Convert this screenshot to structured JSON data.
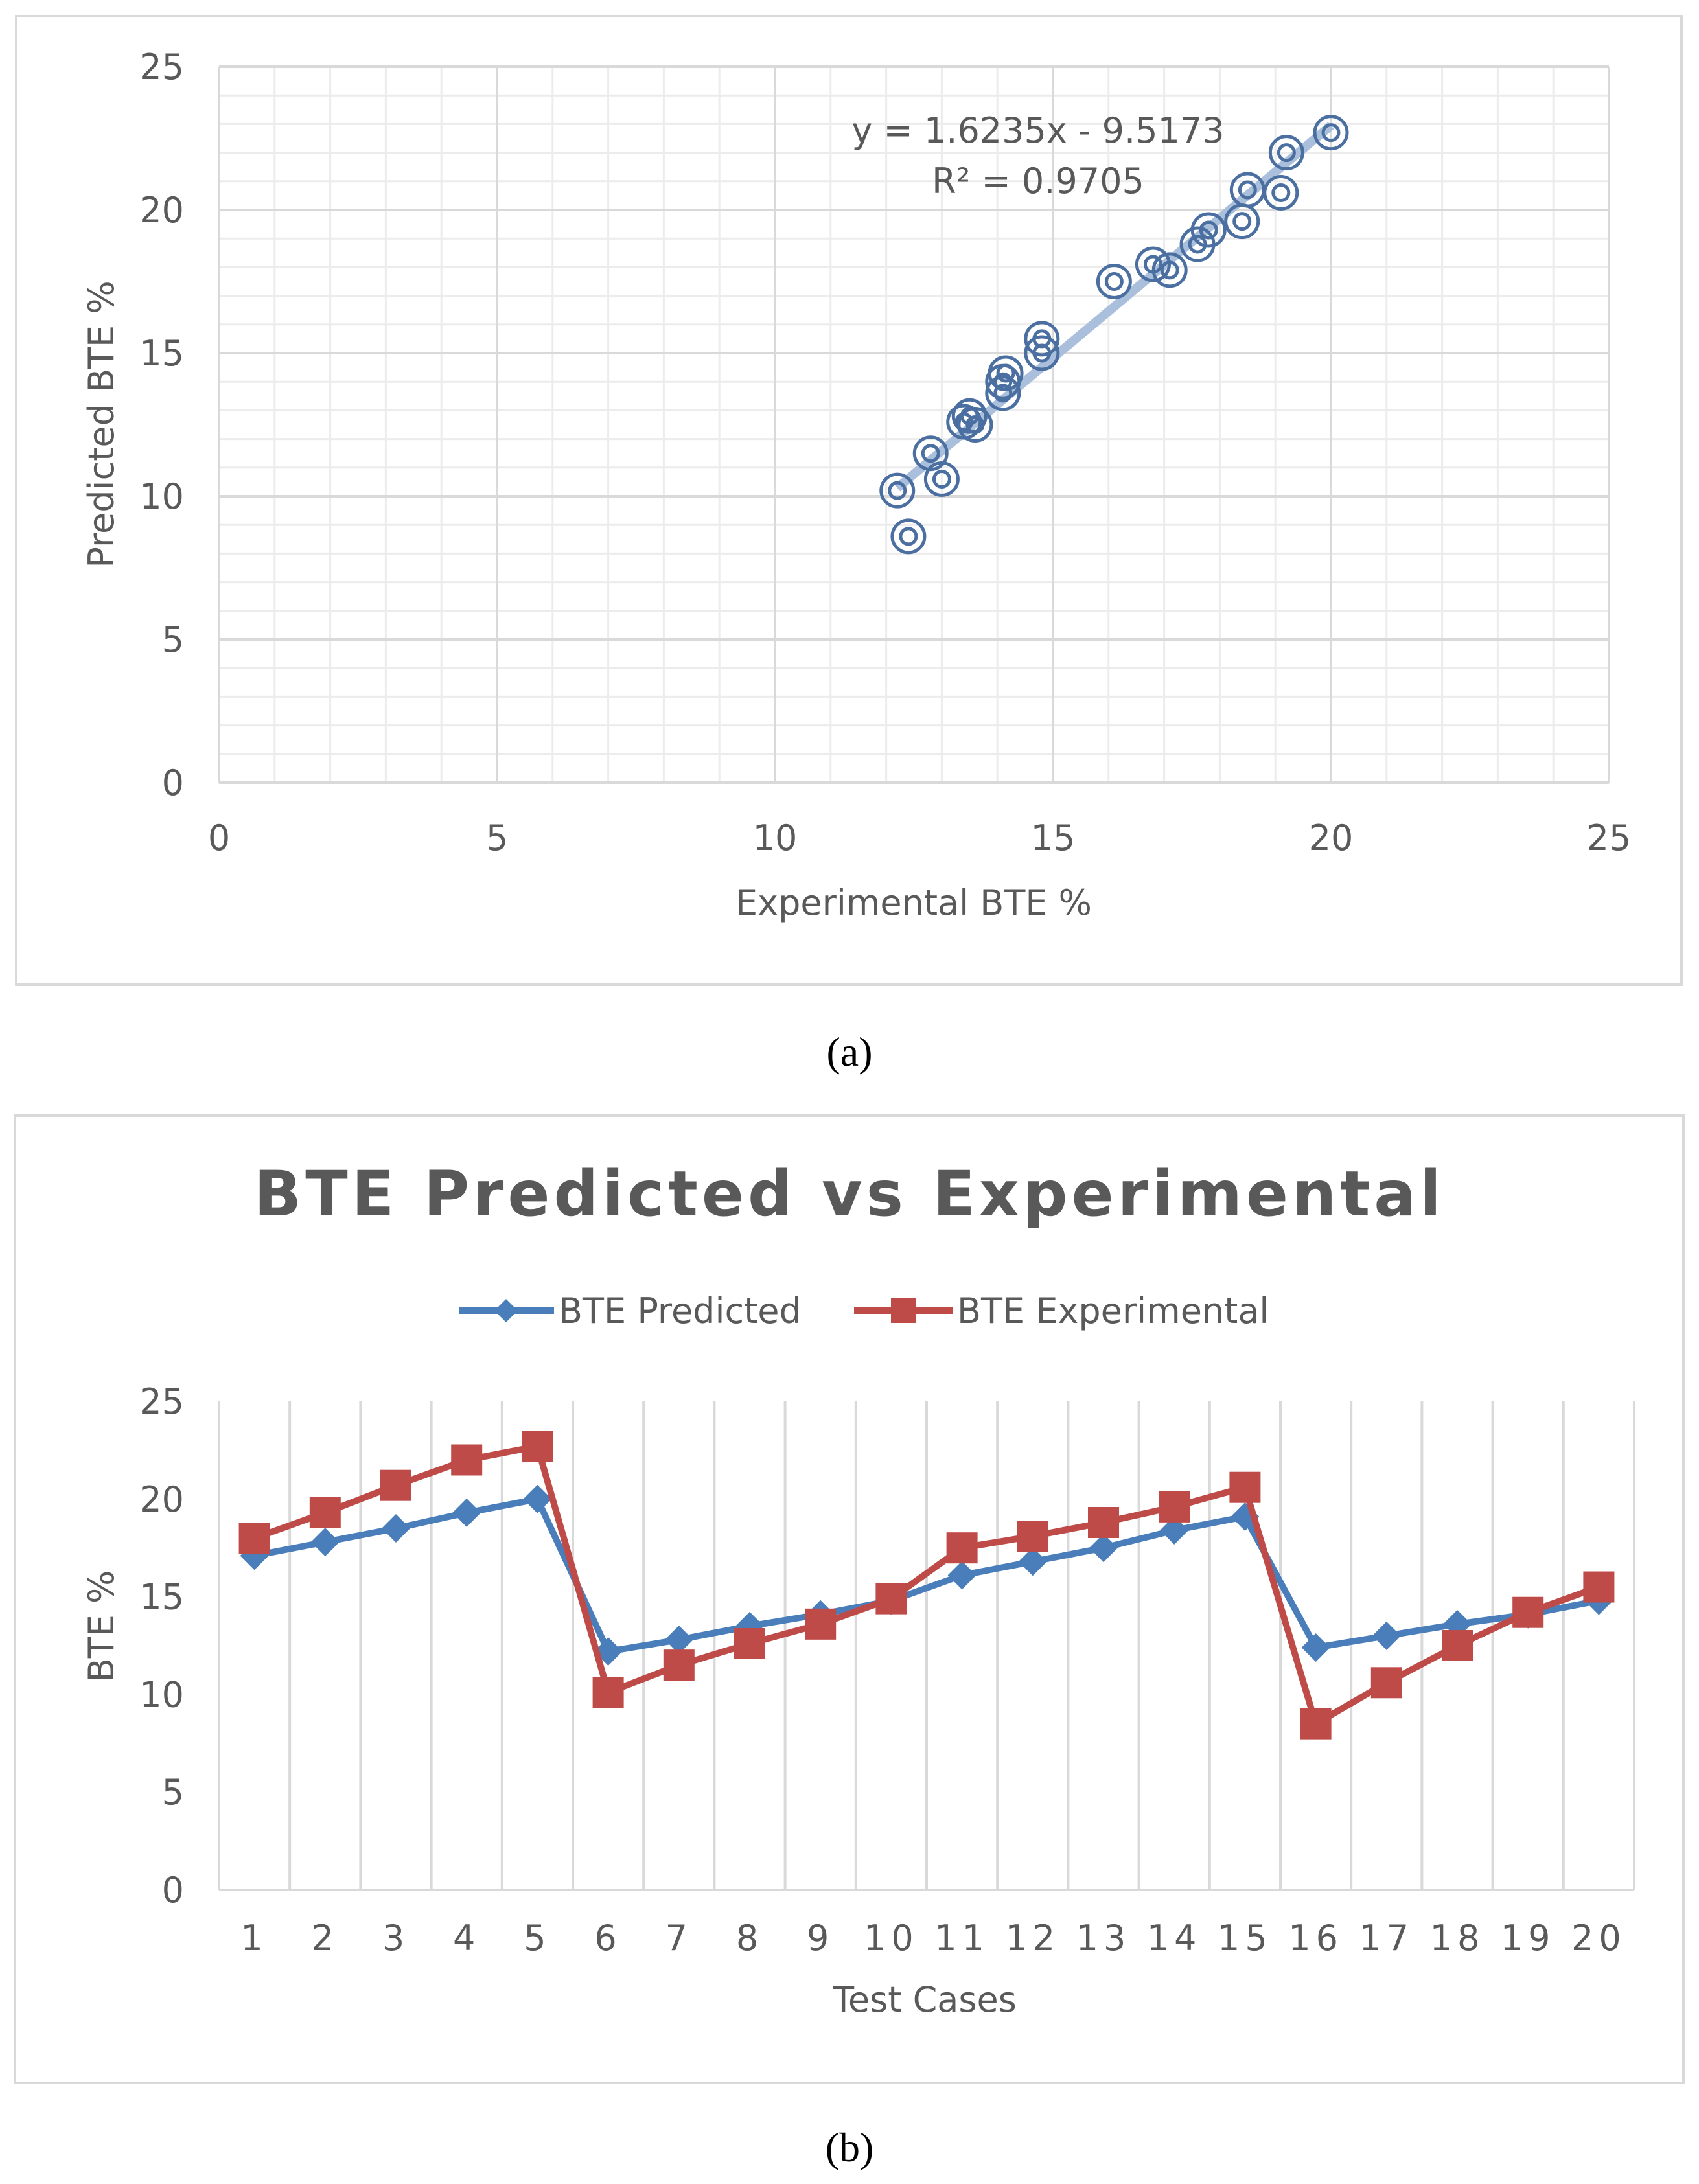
{
  "chart_data": [
    {
      "type": "scatter",
      "title": "",
      "xlabel": "Experimental BTE %",
      "ylabel": "Predicted BTE %",
      "xlim": [
        0,
        25
      ],
      "ylim": [
        0,
        25
      ],
      "xticks": [
        "0",
        "5",
        "10",
        "15",
        "20",
        "25"
      ],
      "yticks": [
        "0",
        "5",
        "10",
        "15",
        "20",
        "25"
      ],
      "marker": "double-circle",
      "color": "#4a6fa0",
      "points": [
        [
          12.2,
          10.2
        ],
        [
          12.4,
          8.6
        ],
        [
          12.8,
          11.5
        ],
        [
          13.0,
          10.6
        ],
        [
          13.4,
          12.6
        ],
        [
          13.5,
          12.8
        ],
        [
          13.6,
          12.5
        ],
        [
          14.1,
          13.6
        ],
        [
          14.1,
          14.0
        ],
        [
          14.15,
          14.3
        ],
        [
          14.8,
          15.0
        ],
        [
          14.8,
          15.5
        ],
        [
          16.1,
          17.5
        ],
        [
          16.8,
          18.1
        ],
        [
          17.1,
          17.9
        ],
        [
          17.6,
          18.8
        ],
        [
          17.8,
          19.3
        ],
        [
          18.4,
          19.6
        ],
        [
          18.5,
          20.7
        ],
        [
          19.1,
          20.6
        ],
        [
          19.2,
          22.0
        ],
        [
          20.0,
          22.7
        ]
      ],
      "trendline": {
        "from": [
          12.2,
          10.29
        ],
        "to": [
          20.0,
          22.95
        ],
        "color": "#a9bfdc",
        "equation": "y = 1.6235x - 9.5173",
        "r2": "R² = 0.9705"
      },
      "caption": "(a)"
    },
    {
      "type": "line",
      "title": "BTE Predicted vs Experimental",
      "xlabel": "Test Cases",
      "ylabel": "BTE %",
      "ylim": [
        0,
        25
      ],
      "yticks": [
        "0",
        "5",
        "10",
        "15",
        "20",
        "25"
      ],
      "categories": [
        "1",
        "2",
        "3",
        "4",
        "5",
        "6",
        "7",
        "8",
        "9",
        "10",
        "11",
        "12",
        "13",
        "14",
        "15",
        "16",
        "17",
        "18",
        "19",
        "20"
      ],
      "series": [
        {
          "name": "BTE Predicted",
          "marker": "diamond",
          "color": "#4a7ebb",
          "values": [
            17.1,
            17.8,
            18.5,
            19.3,
            20.0,
            12.2,
            12.8,
            13.5,
            14.1,
            14.8,
            16.1,
            16.8,
            17.5,
            18.4,
            19.1,
            12.4,
            13.0,
            13.6,
            14.1,
            14.8
          ]
        },
        {
          "name": "BTE Experimental",
          "marker": "square",
          "color": "#be4b48",
          "values": [
            18.0,
            19.3,
            20.7,
            22.0,
            22.7,
            10.1,
            11.5,
            12.6,
            13.6,
            14.9,
            17.5,
            18.1,
            18.8,
            19.6,
            20.6,
            8.5,
            10.6,
            12.5,
            14.2,
            15.5
          ]
        }
      ],
      "legend_position": "top",
      "caption": "(b)"
    }
  ]
}
